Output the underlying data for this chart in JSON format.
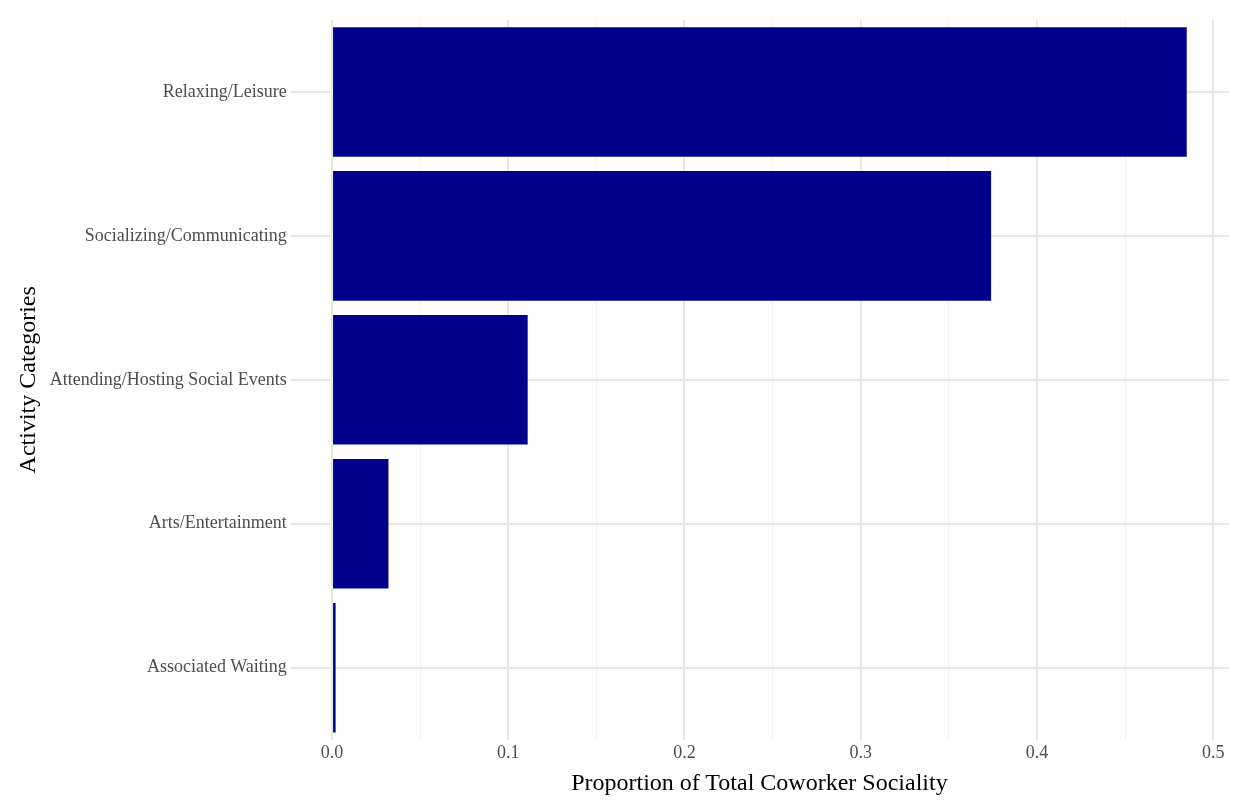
{
  "chart_data": {
    "type": "bar",
    "orientation": "horizontal",
    "xlabel": "Proportion of Total Coworker Sociality",
    "ylabel": "Activity Categories",
    "categories": [
      "Relaxing/Leisure",
      "Socializing/Communicating",
      "Attending/Hosting Social Events",
      "Arts/Entertainment",
      "Associated Waiting"
    ],
    "values": [
      0.485,
      0.374,
      0.111,
      0.032,
      0.002
    ],
    "color": "#00008b",
    "xlim": [
      -0.024,
      0.509
    ],
    "xticks": [
      {
        "value": 0,
        "label": "0.0"
      },
      {
        "value": 0.05,
        "label": null
      },
      0.1,
      {
        "value": 0.15,
        "label": null
      },
      0.2,
      {
        "value": 0.25,
        "label": null
      },
      0.3,
      {
        "value": 0.35,
        "label": null
      },
      0.4,
      {
        "value": 0.45,
        "label": null
      },
      0.5
    ],
    "grid": true
  }
}
